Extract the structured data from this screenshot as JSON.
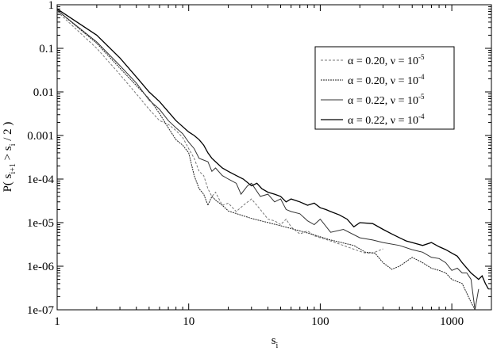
{
  "chart_data": {
    "type": "line",
    "xscale": "log",
    "yscale": "log",
    "xlim": [
      1,
      2000
    ],
    "ylim": [
      1e-07,
      1
    ],
    "x_ticks": [
      {
        "value": 1,
        "label": "1"
      },
      {
        "value": 10,
        "label": "10"
      },
      {
        "value": 100,
        "label": "100"
      },
      {
        "value": 1000,
        "label": "1000"
      }
    ],
    "y_ticks": [
      {
        "value": 1,
        "label": "1"
      },
      {
        "value": 0.1,
        "label": "0.1"
      },
      {
        "value": 0.01,
        "label": "0.01"
      },
      {
        "value": 0.001,
        "label": "0.001"
      },
      {
        "value": 0.0001,
        "label": "1e-04"
      },
      {
        "value": 1e-05,
        "label": "1e-05"
      },
      {
        "value": 1e-06,
        "label": "1e-06"
      },
      {
        "value": 1e-07,
        "label": "1e-07"
      }
    ],
    "xlabel": {
      "base": "s",
      "sub": "i"
    },
    "ylabel": {
      "p1": "P( s",
      "sub1": "i+1",
      "p2": " > s",
      "sub2": "i",
      "p3": " / 2 )"
    },
    "grid": false,
    "legend_position": "top-right",
    "series": [
      {
        "legend": {
          "alpha": "0.20",
          "nu_exp": "-5"
        },
        "color": "#777777",
        "width": 1,
        "dash": "3,2",
        "points": [
          [
            1,
            0.7
          ],
          [
            2,
            0.1
          ],
          [
            3,
            0.025
          ],
          [
            4,
            0.009
          ],
          [
            5,
            0.004
          ],
          [
            6,
            0.0022
          ],
          [
            7,
            0.0018
          ],
          [
            8,
            0.0013
          ],
          [
            9,
            0.0009
          ],
          [
            10,
            0.0005
          ],
          [
            11,
            0.0003
          ],
          [
            12,
            0.00015
          ],
          [
            13,
            0.00012
          ],
          [
            14,
            6e-05
          ],
          [
            15,
            4e-05
          ],
          [
            16,
            5e-05
          ],
          [
            18,
            2.5e-05
          ],
          [
            20,
            2.8e-05
          ],
          [
            23,
            1.8e-05
          ],
          [
            26,
            2.5e-05
          ],
          [
            30,
            3.5e-05
          ],
          [
            35,
            2e-05
          ],
          [
            40,
            1.2e-05
          ],
          [
            45,
            1.1e-05
          ],
          [
            50,
            9e-06
          ],
          [
            55,
            1.2e-05
          ],
          [
            60,
            8e-06
          ],
          [
            70,
            5.5e-06
          ],
          [
            80,
            6.5e-06
          ],
          [
            90,
            5e-06
          ],
          [
            100,
            4.5e-06
          ],
          [
            120,
            3.8e-06
          ],
          [
            150,
            3e-06
          ],
          [
            200,
            2.2e-06
          ],
          [
            220,
            2e-06
          ],
          [
            250,
            2e-06
          ],
          [
            300,
            2.5e-06
          ]
        ]
      },
      {
        "legend": {
          "alpha": "0.20",
          "nu_exp": "-4"
        },
        "color": "#222222",
        "width": 1,
        "dash": "2,1",
        "points": [
          [
            1,
            0.75
          ],
          [
            2,
            0.13
          ],
          [
            3,
            0.035
          ],
          [
            4,
            0.014
          ],
          [
            5,
            0.007
          ],
          [
            6,
            0.0032
          ],
          [
            7,
            0.0015
          ],
          [
            8,
            0.0008
          ],
          [
            9,
            0.0006
          ],
          [
            10,
            0.0004
          ],
          [
            11,
            0.00012
          ],
          [
            12,
            6e-05
          ],
          [
            13,
            4.5e-05
          ],
          [
            14,
            2.5e-05
          ],
          [
            15,
            4e-05
          ],
          [
            16,
            3.3e-05
          ],
          [
            18,
            2.5e-05
          ],
          [
            20,
            1.85e-05
          ],
          [
            30,
            1.25e-05
          ],
          [
            50,
            8.5e-06
          ],
          [
            80,
            5.8e-06
          ],
          [
            120,
            4e-06
          ],
          [
            180,
            3e-06
          ],
          [
            220,
            2.1e-06
          ],
          [
            260,
            2e-06
          ],
          [
            300,
            1.2e-06
          ],
          [
            350,
            8.5e-07
          ],
          [
            400,
            1e-06
          ],
          [
            500,
            1.6e-06
          ],
          [
            600,
            1.2e-06
          ],
          [
            700,
            9e-07
          ],
          [
            800,
            8e-07
          ],
          [
            900,
            7e-07
          ],
          [
            1000,
            5e-07
          ],
          [
            1200,
            4e-07
          ],
          [
            1400,
            1.5e-07
          ],
          [
            1500,
            1e-07
          ]
        ]
      },
      {
        "legend": {
          "alpha": "0.22",
          "nu_exp": "-5"
        },
        "color": "#333333",
        "width": 1,
        "dash": "",
        "points": [
          [
            1,
            0.75
          ],
          [
            2,
            0.14
          ],
          [
            3,
            0.04
          ],
          [
            4,
            0.016
          ],
          [
            5,
            0.0065
          ],
          [
            6,
            0.004
          ],
          [
            7,
            0.0022
          ],
          [
            8,
            0.0015
          ],
          [
            9,
            0.0011
          ],
          [
            10,
            0.0007
          ],
          [
            11,
            0.0005
          ],
          [
            12,
            0.0003
          ],
          [
            14,
            0.00025
          ],
          [
            15,
            0.00015
          ],
          [
            16,
            0.00018
          ],
          [
            18,
            0.00012
          ],
          [
            20,
            0.0001
          ],
          [
            23,
            8e-05
          ],
          [
            25,
            4.5e-05
          ],
          [
            28,
            7e-05
          ],
          [
            30,
            8e-05
          ],
          [
            35,
            4e-05
          ],
          [
            40,
            4.5e-05
          ],
          [
            45,
            3e-05
          ],
          [
            50,
            3.5e-05
          ],
          [
            55,
            2e-05
          ],
          [
            60,
            1.8e-05
          ],
          [
            70,
            1.6e-05
          ],
          [
            80,
            1.1e-05
          ],
          [
            90,
            9e-06
          ],
          [
            100,
            1.2e-05
          ],
          [
            120,
            6e-06
          ],
          [
            150,
            7e-06
          ],
          [
            200,
            4.5e-06
          ],
          [
            250,
            4e-06
          ],
          [
            300,
            3.5e-06
          ],
          [
            400,
            3e-06
          ],
          [
            500,
            2.4e-06
          ],
          [
            600,
            2.1e-06
          ],
          [
            700,
            1.6e-06
          ],
          [
            800,
            1.5e-06
          ],
          [
            900,
            1.2e-06
          ],
          [
            1000,
            8e-07
          ],
          [
            1100,
            9e-07
          ],
          [
            1200,
            7e-07
          ],
          [
            1300,
            7e-07
          ],
          [
            1400,
            5e-07
          ],
          [
            1500,
            1e-07
          ],
          [
            1600,
            3e-07
          ]
        ]
      },
      {
        "legend": {
          "alpha": "0.22",
          "nu_exp": "-4"
        },
        "color": "#000000",
        "width": 1.3,
        "dash": "",
        "points": [
          [
            1,
            0.8
          ],
          [
            2,
            0.2
          ],
          [
            3,
            0.06
          ],
          [
            4,
            0.022
          ],
          [
            5,
            0.01
          ],
          [
            6,
            0.006
          ],
          [
            7,
            0.0035
          ],
          [
            8,
            0.0022
          ],
          [
            9,
            0.0016
          ],
          [
            10,
            0.0012
          ],
          [
            11,
            0.001
          ],
          [
            12,
            0.0008
          ],
          [
            13,
            0.0006
          ],
          [
            14,
            0.0004
          ],
          [
            15,
            0.0003
          ],
          [
            16,
            0.00025
          ],
          [
            18,
            0.00018
          ],
          [
            20,
            0.00015
          ],
          [
            23,
            0.00012
          ],
          [
            26,
            0.0001
          ],
          [
            30,
            7e-05
          ],
          [
            33,
            8e-05
          ],
          [
            36,
            6e-05
          ],
          [
            40,
            5e-05
          ],
          [
            45,
            4.5e-05
          ],
          [
            50,
            4e-05
          ],
          [
            55,
            3e-05
          ],
          [
            60,
            3.5e-05
          ],
          [
            70,
            3e-05
          ],
          [
            80,
            2.5e-05
          ],
          [
            90,
            2.8e-05
          ],
          [
            100,
            2.2e-05
          ],
          [
            110,
            2e-05
          ],
          [
            120,
            1.8e-05
          ],
          [
            140,
            1.5e-05
          ],
          [
            160,
            1.2e-05
          ],
          [
            180,
            8e-06
          ],
          [
            200,
            1e-05
          ],
          [
            250,
            9.5e-06
          ],
          [
            300,
            7e-06
          ],
          [
            350,
            5.5e-06
          ],
          [
            400,
            4.5e-06
          ],
          [
            450,
            3.8e-06
          ],
          [
            500,
            3.5e-06
          ],
          [
            600,
            3e-06
          ],
          [
            700,
            3.5e-06
          ],
          [
            800,
            2.8e-06
          ],
          [
            900,
            2.4e-06
          ],
          [
            1000,
            2e-06
          ],
          [
            1100,
            1.7e-06
          ],
          [
            1200,
            1.2e-06
          ],
          [
            1400,
            7e-07
          ],
          [
            1600,
            5e-07
          ],
          [
            1700,
            6e-07
          ],
          [
            1800,
            4e-07
          ],
          [
            1900,
            3e-07
          ]
        ]
      }
    ]
  }
}
